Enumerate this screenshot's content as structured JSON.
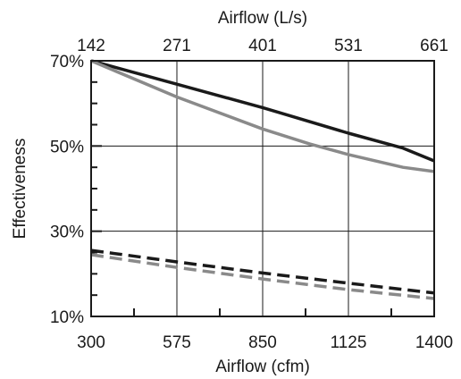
{
  "chart_data": {
    "type": "line",
    "title": "",
    "xlabel": "Airflow (cfm)",
    "x2label": "Airflow (L/s)",
    "ylabel": "Effectiveness",
    "xlim": [
      300,
      1400
    ],
    "ylim": [
      10,
      70
    ],
    "x_ticks": [
      300,
      575,
      850,
      1125,
      1400
    ],
    "x_tick_labels": [
      "300",
      "575",
      "850",
      "1125",
      "1400"
    ],
    "x2_ticks": [
      300,
      575,
      850,
      1125,
      1400
    ],
    "x2_tick_labels": [
      "142",
      "271",
      "401",
      "531",
      "661"
    ],
    "y_ticks": [
      10,
      30,
      50,
      70
    ],
    "y_tick_labels": [
      "10%",
      "30%",
      "50%",
      "70%"
    ],
    "grid": true,
    "legend": "none",
    "series": [
      {
        "color": "#1a1a1a",
        "dash": "solid",
        "x": [
          300,
          575,
          850,
          1125,
          1300,
          1400
        ],
        "y": [
          70,
          64.5,
          59,
          53,
          49.5,
          46.5
        ]
      },
      {
        "color": "#8a8a8a",
        "dash": "solid",
        "x": [
          300,
          575,
          850,
          1000,
          1125,
          1300,
          1400
        ],
        "y": [
          70,
          61.5,
          54,
          50.5,
          48,
          45,
          44
        ]
      },
      {
        "color": "#1a1a1a",
        "dash": "dashed",
        "x": [
          300,
          575,
          850,
          1125,
          1400
        ],
        "y": [
          25.5,
          22.8,
          20.2,
          17.8,
          15.5
        ]
      },
      {
        "color": "#8a8a8a",
        "dash": "dashed",
        "x": [
          300,
          575,
          850,
          1125,
          1400
        ],
        "y": [
          24.5,
          21.5,
          18.8,
          16.3,
          14.2
        ]
      }
    ]
  }
}
